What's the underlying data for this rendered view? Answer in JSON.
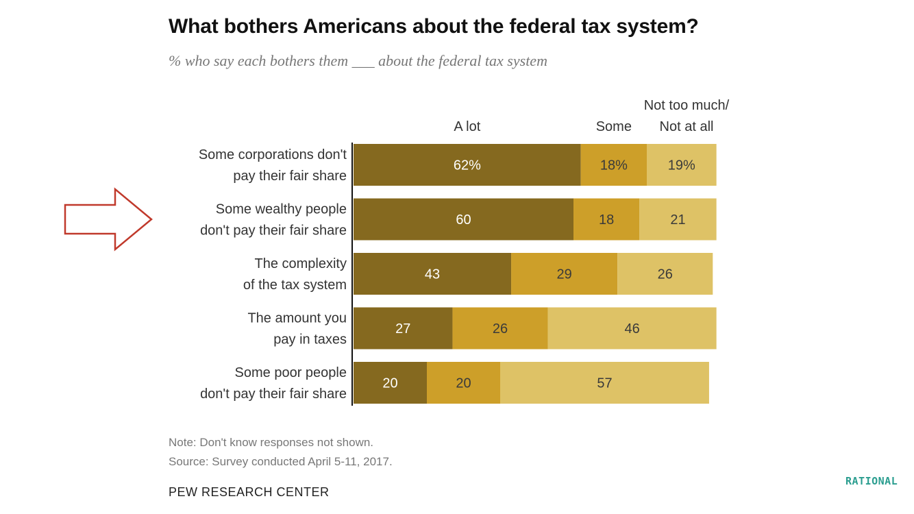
{
  "header": {
    "title": "What bothers Americans about the federal tax system?",
    "subtitle": "% who say each bothers them ___ about the federal tax system"
  },
  "footer": {
    "note": "Note: Don't know responses not shown.",
    "source": "Source: Survey conducted April 5-11, 2017.",
    "organization": "PEW RESEARCH CENTER",
    "watermark": "RATIONAL"
  },
  "colors": {
    "a_lot": "#85691f",
    "some": "#cd9f29",
    "not_much": "#dec266",
    "arrow": "#c0392b",
    "axis": "#111111"
  },
  "chart_data": {
    "type": "bar",
    "orientation": "horizontal",
    "stacked": true,
    "title": "What bothers Americans about the federal tax system?",
    "subtitle": "% who say each bothers them ___ about the federal tax system",
    "categories": [
      [
        "Some corporations don't",
        "pay their fair share"
      ],
      [
        "Some wealthy people",
        "don't pay their fair share"
      ],
      [
        "The complexity",
        "of the tax system"
      ],
      [
        "The amount you",
        "pay in taxes"
      ],
      [
        "Some poor people",
        "don't pay their fair share"
      ]
    ],
    "series": [
      {
        "name": "A lot",
        "values": [
          62,
          60,
          43,
          27,
          20
        ]
      },
      {
        "name": "Some",
        "values": [
          18,
          18,
          29,
          26,
          20
        ]
      },
      {
        "name": "Not too much/ Not at all",
        "name_lines": [
          "Not too much/",
          "Not at all"
        ],
        "values": [
          19,
          21,
          26,
          46,
          57
        ]
      }
    ],
    "value_labels": [
      [
        "62%",
        "18%",
        "19%"
      ],
      [
        "60",
        "18",
        "21"
      ],
      [
        "43",
        "29",
        "26"
      ],
      [
        "27",
        "26",
        "46"
      ],
      [
        "20",
        "20",
        "57"
      ]
    ],
    "highlighted_row": 1,
    "xlim": [
      0,
      100
    ],
    "grid": false,
    "legend_position": "top"
  }
}
